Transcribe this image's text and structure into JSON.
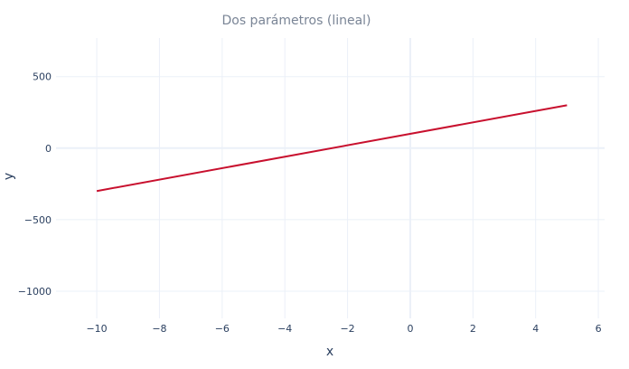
{
  "chart_data": {
    "type": "line",
    "title": "Dos parámetros (lineal)",
    "xlabel": "x",
    "ylabel": "y",
    "xlim": [
      -11.3,
      6.2
    ],
    "ylim": [
      -1190,
      770
    ],
    "xticks": [
      -10,
      -8,
      -6,
      -4,
      -2,
      0,
      2,
      4,
      6
    ],
    "xtick_labels": [
      "−10",
      "−8",
      "−6",
      "−4",
      "−2",
      "0",
      "2",
      "4",
      "6"
    ],
    "yticks": [
      -1000,
      -500,
      0,
      500
    ],
    "ytick_labels": [
      "−1000",
      "−500",
      "0",
      "500"
    ],
    "grid": true,
    "series": [
      {
        "x": [
          -10,
          5
        ],
        "y": [
          -300,
          300
        ],
        "color": "#c8102e"
      }
    ]
  }
}
